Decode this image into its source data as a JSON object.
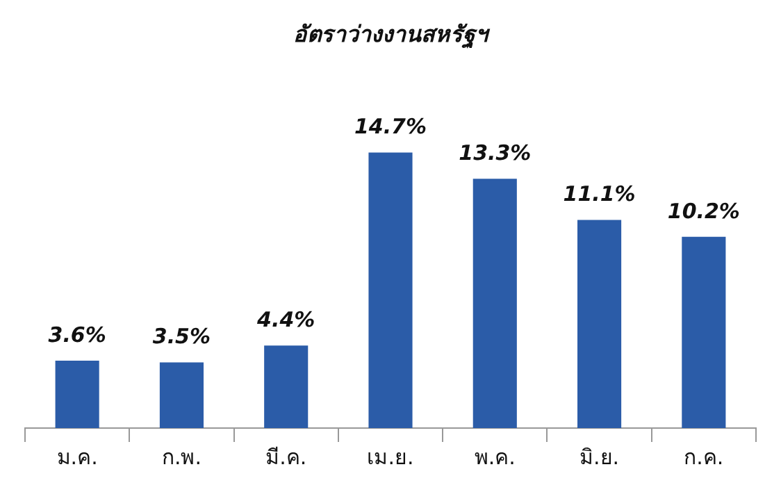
{
  "chart_data": {
    "type": "bar",
    "title": "อัตราว่างงานสหรัฐฯ",
    "categories": [
      "ม.ค.",
      "ก.พ.",
      "มี.ค.",
      "เม.ย.",
      "พ.ค.",
      "มิ.ย.",
      "ก.ค."
    ],
    "values": [
      3.6,
      3.5,
      4.4,
      14.7,
      13.3,
      11.1,
      10.2
    ],
    "value_labels": [
      "3.6%",
      "3.5%",
      "4.4%",
      "14.7%",
      "13.3%",
      "11.1%",
      "10.2%"
    ],
    "color": "#2b5ca8",
    "grid": false,
    "legend": false
  }
}
